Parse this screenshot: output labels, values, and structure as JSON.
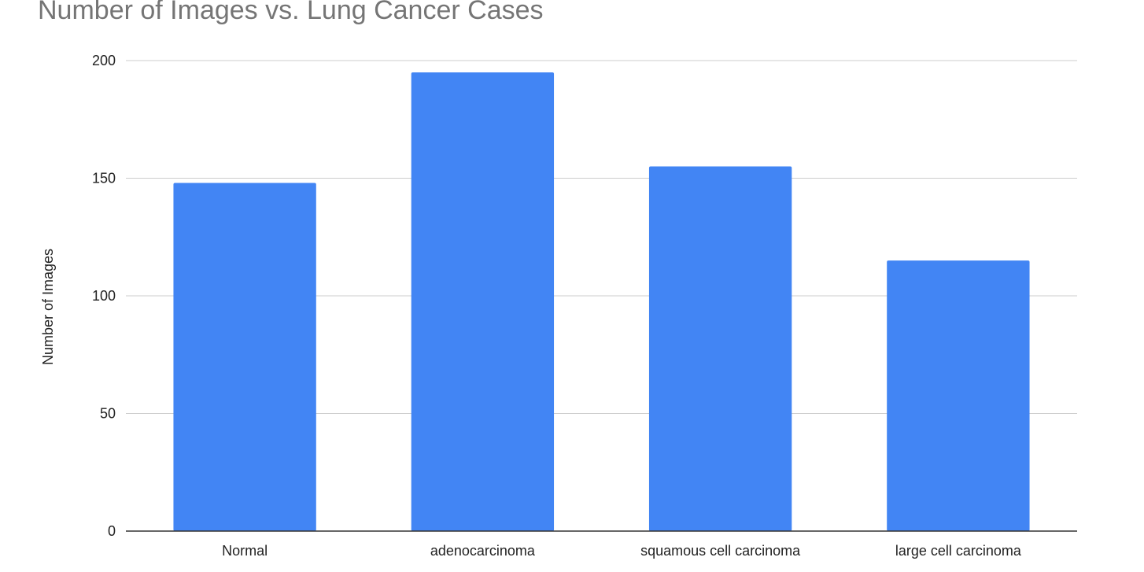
{
  "chart_data": {
    "type": "bar",
    "title": "Number of Images vs. Lung Cancer Cases",
    "xlabel": "",
    "ylabel": "Number of Images",
    "categories": [
      "Normal",
      "adenocarcinoma",
      "squamous cell carcinoma",
      "large cell carcinoma"
    ],
    "values": [
      148,
      195,
      155,
      115
    ],
    "ylim": [
      0,
      200
    ],
    "yticks": [
      0,
      50,
      100,
      150,
      200
    ],
    "grid": true,
    "legend": "none",
    "bar_color": "#4285f4",
    "grid_color": "#cccccc",
    "axis_color": "#333333"
  }
}
